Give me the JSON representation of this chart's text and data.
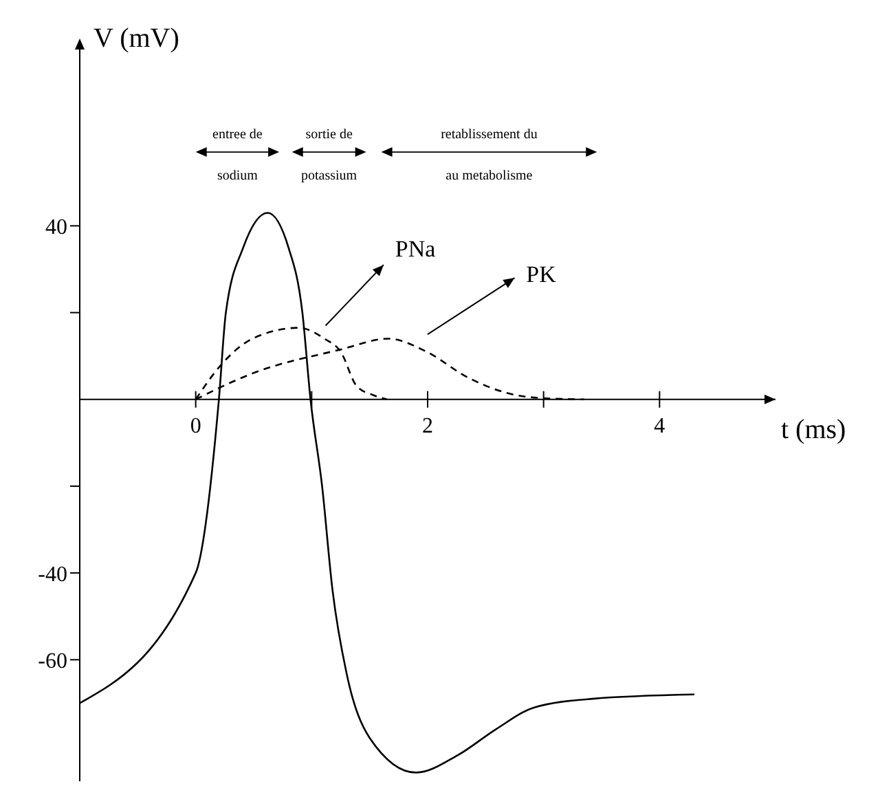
{
  "chart_data": {
    "type": "line",
    "xlabel": "t (ms)",
    "ylabel": "V (mV)",
    "xlim": [
      -1,
      5
    ],
    "ylim": [
      -88,
      80
    ],
    "xticks": [
      0,
      {
        "value": 1,
        "label": null
      },
      2,
      {
        "value": 3,
        "label": null
      },
      4
    ],
    "yticks": [
      -60,
      -40,
      {
        "value": -20,
        "label": null
      },
      {
        "value": 20,
        "label": null
      },
      40
    ],
    "marker": "none",
    "annotations": [
      "entree de\nsodium",
      "sortie de\npotassium",
      "retablissement du\nau metabolisme"
    ],
    "series": [
      {
        "color": "#000000",
        "line_style": "solid",
        "x": [
          -1,
          0,
          0.2,
          0.26,
          0.41,
          0.62,
          0.8,
          0.92,
          0.99,
          1.09,
          1.18,
          1.3,
          1.5,
          1.9,
          2.26,
          2.59,
          2.92,
          3.42,
          4.3
        ],
        "values": [
          -70,
          -40,
          0,
          20,
          35,
          43,
          35,
          20,
          0,
          -20,
          -44,
          -63,
          -78,
          -86,
          -82,
          -76,
          -71,
          -69,
          -68
        ]
      },
      {
        "name": "PNa",
        "color": "#000000",
        "line_style": "dashed",
        "x": [
          0,
          0.22,
          0.49,
          0.89,
          1.11,
          1.25,
          1.39,
          1.53,
          1.65
        ],
        "values": [
          0,
          8,
          14,
          16.5,
          14,
          11,
          3,
          1,
          0
        ]
      },
      {
        "name": "PK",
        "color": "#000000",
        "line_style": "dashed",
        "x": [
          0,
          0.49,
          1.25,
          1.66,
          1.99,
          2.35,
          2.76,
          2.99,
          3.35
        ],
        "values": [
          0,
          6,
          11.5,
          14,
          11,
          5,
          1,
          0.3,
          0
        ]
      }
    ]
  }
}
